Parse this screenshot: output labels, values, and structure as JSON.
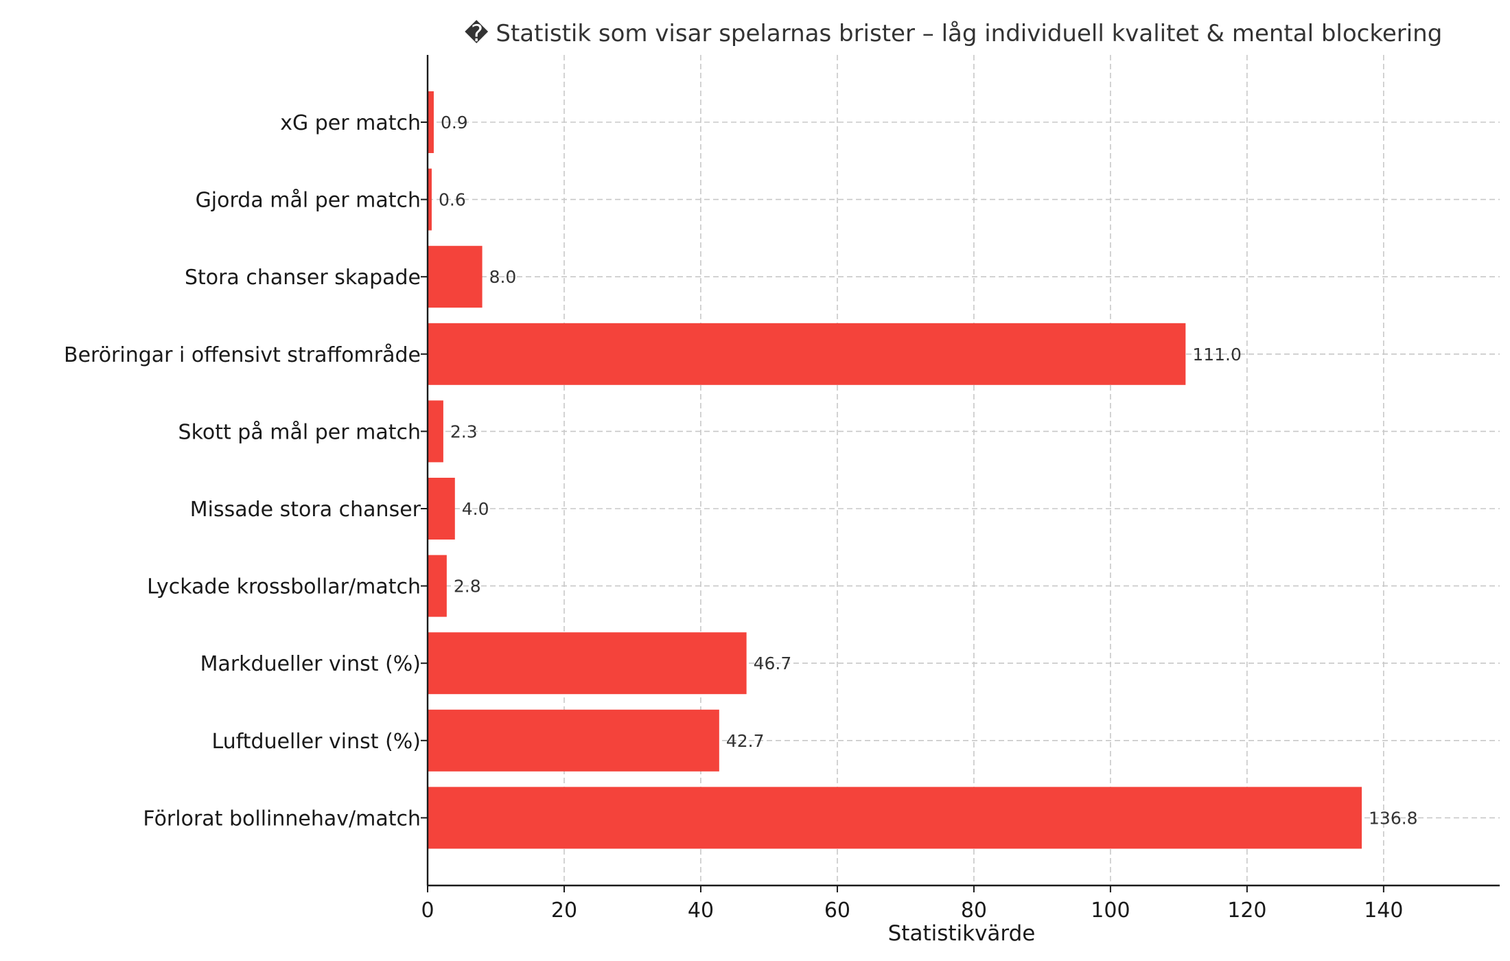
{
  "chart_data": {
    "type": "bar",
    "orientation": "horizontal",
    "title": "� Statistik som visar spelarnas brister – låg individuell kvalitet & mental blockering",
    "xlabel": "Statistikvärde",
    "ylabel": "",
    "xlim": [
      0,
      157
    ],
    "xticks": [
      0,
      20,
      40,
      60,
      80,
      100,
      120,
      140
    ],
    "grid": true,
    "bar_color": "#f4433b",
    "categories": [
      "xG per match",
      "Gjorda mål per match",
      "Stora chanser skapade",
      "Beröringar i offensivt straffområde",
      "Skott på mål per match",
      "Missade stora chanser",
      "Lyckade krossbollar/match",
      "Markdueller vinst (%)",
      "Luftdueller vinst (%)",
      "Förlorat bollinnehav/match"
    ],
    "values": [
      0.9,
      0.6,
      8.0,
      111.0,
      2.3,
      4.0,
      2.8,
      46.7,
      42.7,
      136.8
    ],
    "value_labels": [
      "0.9",
      "0.6",
      "8.0",
      "111.0",
      "2.3",
      "4.0",
      "2.8",
      "46.7",
      "42.7",
      "136.8"
    ]
  }
}
